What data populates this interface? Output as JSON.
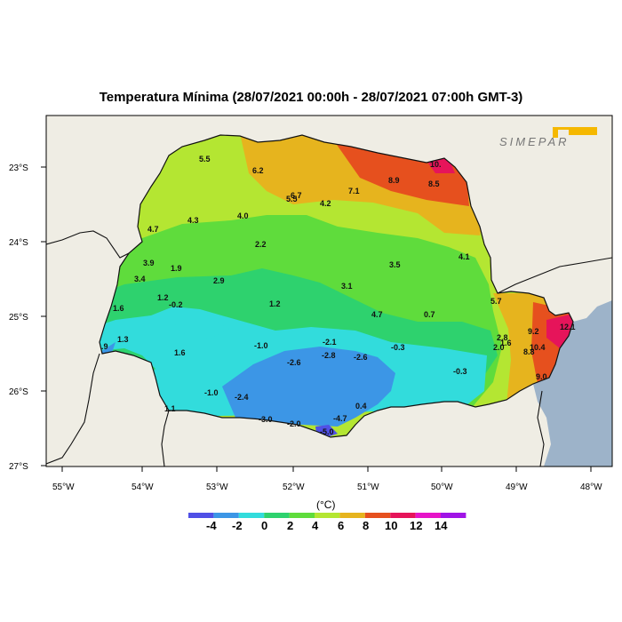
{
  "title": "Temperatura Mínima (28/07/2021 00:00h - 28/07/2021 07:00h GMT-3)",
  "logo": {
    "text": "SIMEPAR",
    "accent_color": "#F5B800"
  },
  "axes": {
    "lat_labels": [
      "23°S",
      "24°S",
      "25°S",
      "26°S",
      "27°S"
    ],
    "lon_labels": [
      "55°W",
      "54°W",
      "53°W",
      "52°W",
      "51°W",
      "50°W",
      "49°W",
      "48°W"
    ]
  },
  "colors": {
    "land": "#EFEDE4",
    "ocean": "#9DB3C9",
    "bins": [
      "#5050E6",
      "#3C96E6",
      "#32DCDC",
      "#2ED26E",
      "#5FDC3C",
      "#B4E632",
      "#E6B41E",
      "#E6501E",
      "#E6145A",
      "#E614C8",
      "#A014E6"
    ]
  },
  "legend": {
    "unit": "(°C)",
    "ticks": [
      "-4",
      "-2",
      "0",
      "2",
      "4",
      "6",
      "8",
      "10",
      "12",
      "14"
    ]
  },
  "station_values": [
    {
      "v": "5.5"
    },
    {
      "v": "6.2"
    },
    {
      "v": "6.7"
    },
    {
      "v": "5.5"
    },
    {
      "v": "7.1"
    },
    {
      "v": "8.9"
    },
    {
      "v": "8.5"
    },
    {
      "v": "10."
    },
    {
      "v": "4.3"
    },
    {
      "v": "4.0"
    },
    {
      "v": "4.2"
    },
    {
      "v": "4.7"
    },
    {
      "v": "2.2"
    },
    {
      "v": "4.1"
    },
    {
      "v": "3.9"
    },
    {
      "v": "1.9"
    },
    {
      "v": "3.5"
    },
    {
      "v": "3.4"
    },
    {
      "v": "2.9"
    },
    {
      "v": "3.1"
    },
    {
      "v": "1.2"
    },
    {
      "v": "-0.2"
    },
    {
      "v": "1.2"
    },
    {
      "v": "5.7"
    },
    {
      "v": "1.6"
    },
    {
      "v": "4.7"
    },
    {
      "v": "0.7"
    },
    {
      "v": "9.2"
    },
    {
      "v": "12.1"
    },
    {
      "v": "1.3"
    },
    {
      "v": ".9"
    },
    {
      "v": "-2.1"
    },
    {
      "v": "-1.0"
    },
    {
      "v": "2.8"
    },
    {
      "v": "1.6"
    },
    {
      "v": "-0.3"
    },
    {
      "v": "2.0"
    },
    {
      "v": "10.4"
    },
    {
      "v": "8.8"
    },
    {
      "v": "1.6"
    },
    {
      "v": "-2.8"
    },
    {
      "v": "-2.6"
    },
    {
      "v": "-2.6"
    },
    {
      "v": "-0.3"
    },
    {
      "v": "9.0"
    },
    {
      "v": "-1.0"
    },
    {
      "v": "-2.4"
    },
    {
      "v": "0.4"
    },
    {
      "v": "-3.0"
    },
    {
      "v": "-2.0"
    },
    {
      "v": "-4.7"
    },
    {
      "v": "-5.0"
    },
    {
      "v": "1.1"
    }
  ]
}
